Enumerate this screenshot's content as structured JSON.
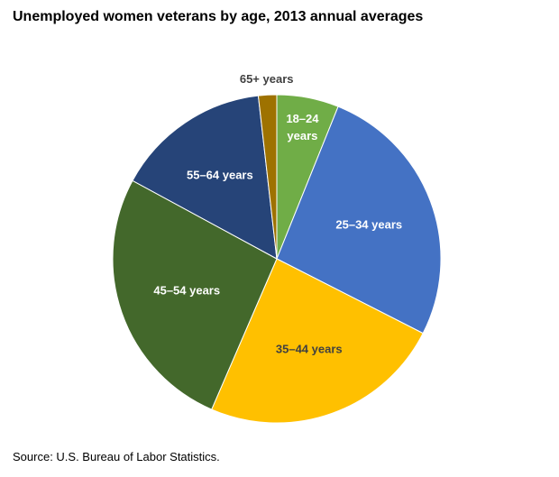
{
  "chart_data": {
    "type": "pie",
    "title": "Unemployed women veterans by age, 2013 annual averages",
    "source": "Source: U.S. Bureau of Labor Statistics.",
    "slices": [
      {
        "label": "18–24 years",
        "label_lines": [
          "18–24",
          "years"
        ],
        "value": 6.1,
        "color": "#70ad47",
        "label_color": "#ffffff"
      },
      {
        "label": "25–34 years",
        "label_lines": [
          "25–34 years"
        ],
        "value": 26.4,
        "color": "#4472c4",
        "label_color": "#ffffff"
      },
      {
        "label": "35–44 years",
        "label_lines": [
          "35–44 years"
        ],
        "value": 24.0,
        "color": "#ffc000",
        "label_color": "#404040"
      },
      {
        "label": "45–54 years",
        "label_lines": [
          "45–54 years"
        ],
        "value": 26.4,
        "color": "#43682b",
        "label_color": "#ffffff"
      },
      {
        "label": "55–64 years",
        "label_lines": [
          "55–64 years"
        ],
        "value": 15.3,
        "color": "#264478",
        "label_color": "#ffffff"
      },
      {
        "label": "65+ years",
        "label_lines": [
          "65+ years"
        ],
        "value": 1.8,
        "color": "#9e7200",
        "label_color": "#404040"
      }
    ]
  }
}
